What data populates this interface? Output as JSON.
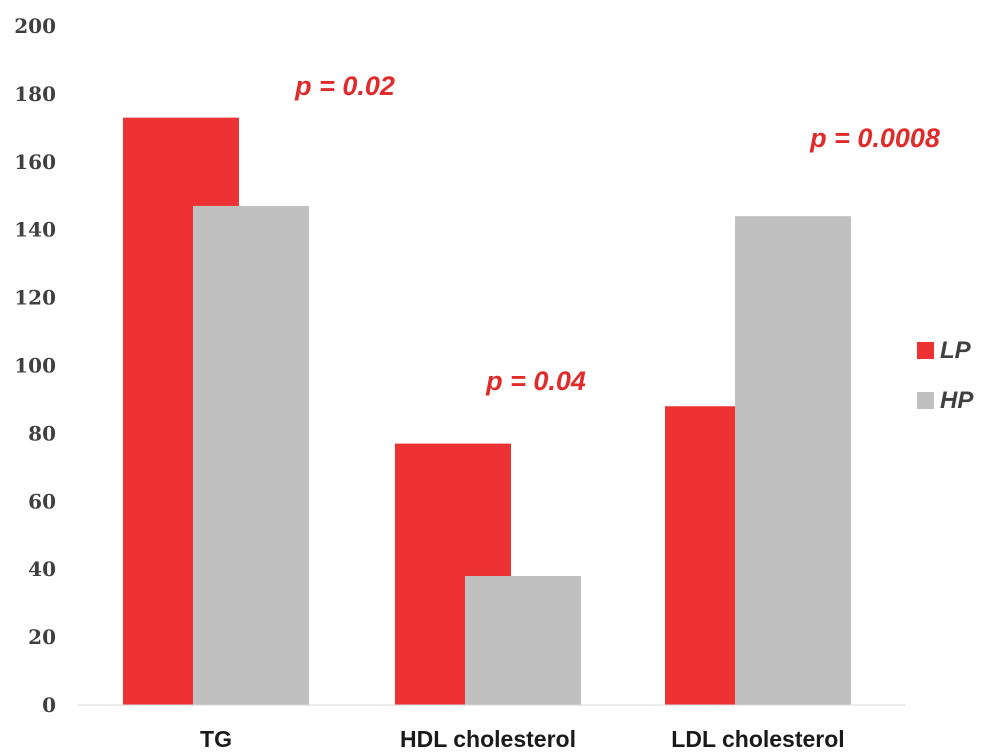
{
  "chart_data": {
    "type": "bar",
    "categories": [
      "TG",
      "HDL cholesterol",
      "LDL cholesterol"
    ],
    "series": [
      {
        "name": "LP",
        "values": [
          173,
          77,
          88
        ],
        "color": "#ee3233"
      },
      {
        "name": "HP",
        "values": [
          147,
          38,
          144
        ],
        "color": "#c0c0c0"
      }
    ],
    "ylim": [
      0,
      200
    ],
    "yticks": [
      "0",
      "20",
      "40",
      "60",
      "80",
      "100",
      "120",
      "140",
      "160",
      "180",
      "200"
    ],
    "annotations": [
      "p = 0.02",
      "p = 0.04",
      "p = 0.0008"
    ],
    "annotation_color": "#e02b2b",
    "grid": false,
    "legend_position": "right"
  }
}
